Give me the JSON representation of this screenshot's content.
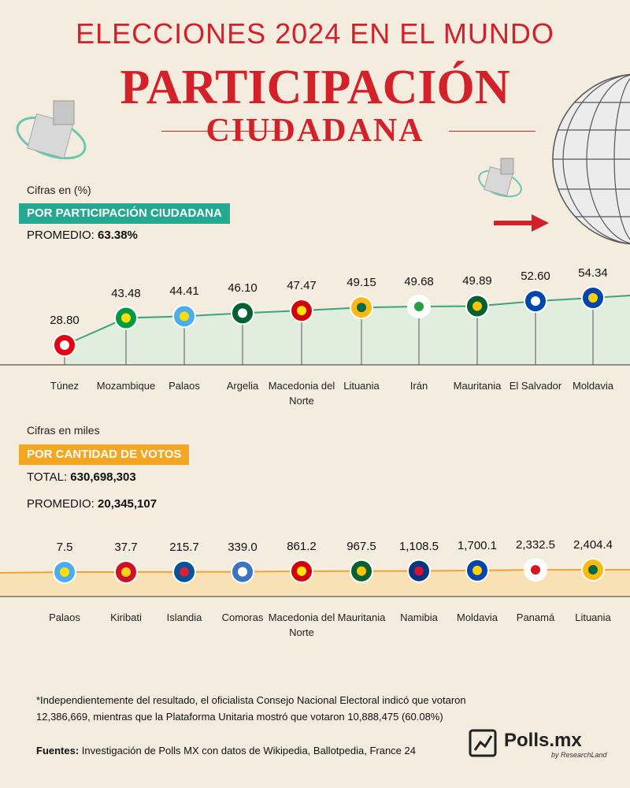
{
  "header": {
    "supertitle": "ELECCIONES 2024 EN EL MUNDO",
    "title": "PARTICIPACIÓN",
    "subtitle": "CIUDADANA"
  },
  "section1": {
    "units": "Cifras en (%)",
    "banner": "POR PARTICIPACIÓN CIUDADANA",
    "avg_label": "PROMEDIO:",
    "avg_value": "63.38%"
  },
  "section2": {
    "units": "Cifras en miles",
    "banner": "POR CANTIDAD DE VOTOS",
    "total_label": "TOTAL:",
    "total_value": "630,698,303",
    "avg_label": "PROMEDIO:",
    "avg_value": "20,345,107"
  },
  "chart_data": [
    {
      "type": "line",
      "categories": [
        "Túnez",
        "Mozambique",
        "Palaos",
        "Argelia",
        "Macedonia del Norte",
        "Lituania",
        "Irán",
        "Mauritania",
        "El Salvador",
        "Moldavia"
      ],
      "values": [
        28.8,
        43.48,
        44.41,
        46.1,
        47.47,
        49.15,
        49.68,
        49.89,
        52.6,
        54.34
      ],
      "labels": [
        "28.80",
        "43.48",
        "44.41",
        "46.10",
        "47.47",
        "49.15",
        "49.68",
        "49.89",
        "52.60",
        "54.34"
      ],
      "ylim": [
        0,
        60
      ],
      "line_color": "#3aa57d"
    },
    {
      "type": "line",
      "categories": [
        "Palaos",
        "Kiribati",
        "Islandia",
        "Comoras",
        "Macedonia del Norte",
        "Mauritania",
        "Namibia",
        "Moldavia",
        "Panamá",
        "Lituania"
      ],
      "values": [
        7.5,
        37.7,
        215.7,
        339.0,
        861.2,
        967.5,
        1108.5,
        1700.1,
        2332.5,
        2404.4
      ],
      "labels": [
        "7.5",
        "37.7",
        "215.7",
        "339.0",
        "861.2",
        "967.5",
        "1,108.5",
        "1,700.1",
        "2,332.5",
        "2,404.4"
      ],
      "line_color": "#f0a431"
    }
  ],
  "footnote": {
    "note_line1": "*Independientemente del resultado, el oficialista Consejo Nacional Electoral indicó que votaron",
    "note_line2": "12,386,669, mientras que la Plataforma Unitaria mostró que votaron 10,888,475 (60.08%)",
    "sources_label": "Fuentes:",
    "sources_text": "Investigación de Polls MX con datos de Wikipedia, Ballotpedia, France 24"
  },
  "brand": {
    "name": "Polls.mx",
    "tagline": "by ResearchLand"
  },
  "colors": {
    "red": "#d3212a",
    "green": "#24a892",
    "orange": "#f5a623"
  }
}
